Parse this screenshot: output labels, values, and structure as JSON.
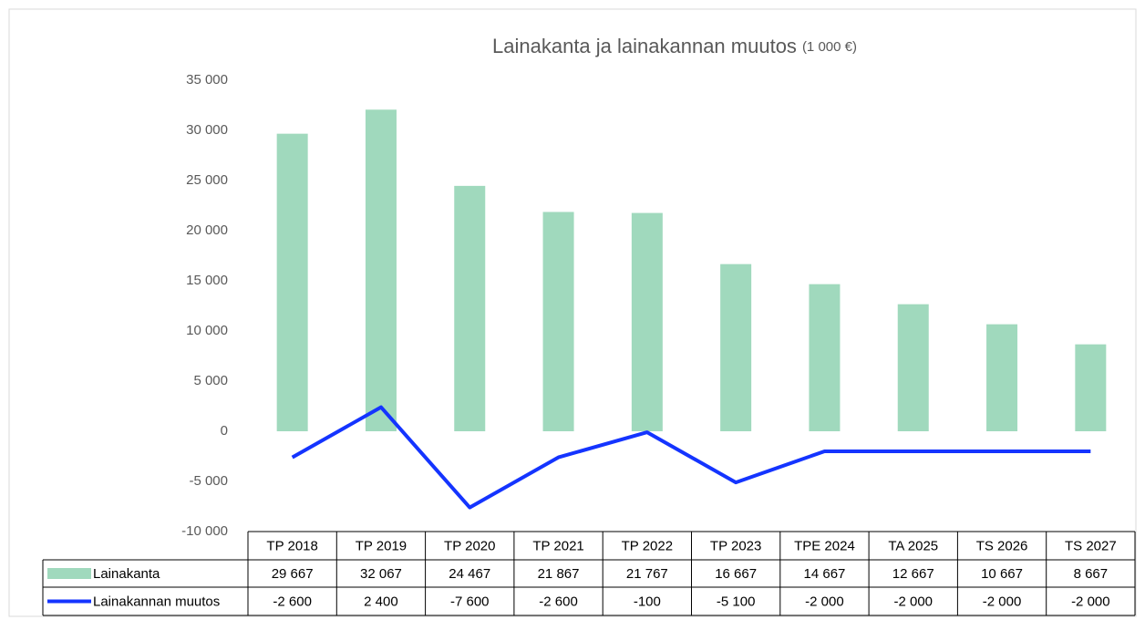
{
  "chart_data": {
    "type": "bar_line_table",
    "title": "Lainakanta ja lainakannan muutos",
    "subtitle": "(1 000 €)",
    "categories": [
      "TP 2018",
      "TP 2019",
      "TP 2020",
      "TP 2021",
      "TP 2022",
      "TP 2023",
      "TPE 2024",
      "TA 2025",
      "TS 2026",
      "TS 2027"
    ],
    "series": [
      {
        "name": "Lainakanta",
        "type": "bar",
        "color": "#a0d9bd",
        "values": [
          29667,
          32067,
          24467,
          21867,
          21767,
          16667,
          14667,
          12667,
          10667,
          8667
        ],
        "value_labels": [
          "29 667",
          "32 067",
          "24 467",
          "21 867",
          "21 767",
          "16 667",
          "14 667",
          "12 667",
          "10 667",
          "8 667"
        ]
      },
      {
        "name": "Lainakannan muutos",
        "type": "line",
        "color": "#1434ff",
        "values": [
          -2600,
          2400,
          -7600,
          -2600,
          -100,
          -5100,
          -2000,
          -2000,
          -2000,
          -2000
        ],
        "value_labels": [
          "-2 600",
          "2 400",
          "-7 600",
          "-2 600",
          "-100",
          "-5 100",
          "-2 000",
          "-2 000",
          "-2 000",
          "-2 000"
        ]
      }
    ],
    "ylim": [
      -10000,
      35000
    ],
    "yticks": [
      {
        "value": 35000,
        "label": "35 000"
      },
      {
        "value": 30000,
        "label": "30 000"
      },
      {
        "value": 25000,
        "label": "25 000"
      },
      {
        "value": 20000,
        "label": "20 000"
      },
      {
        "value": 15000,
        "label": "15 000"
      },
      {
        "value": 10000,
        "label": "10 000"
      },
      {
        "value": 5000,
        "label": "5 000"
      },
      0,
      {
        "value": -5000,
        "label": "-5 000"
      },
      {
        "value": -10000,
        "label": "-10 000"
      }
    ],
    "grid": false
  }
}
